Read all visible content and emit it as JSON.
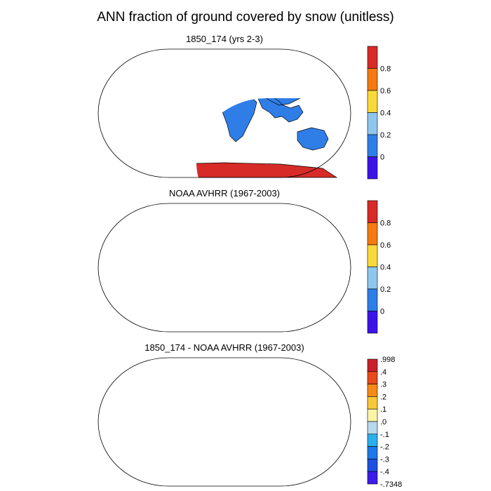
{
  "title": "ANN fraction of ground covered by snow (unitless)",
  "colors": {
    "ocean": "#ffffff",
    "coast": "#000000",
    "blue": "#2f7ee8",
    "lightblue": "#8fc6ec",
    "yellow": "#f7d93a",
    "orange": "#f57a12",
    "red": "#d62b27",
    "purple": "#3d14e8"
  },
  "panels": [
    {
      "title": "1850_174 (yrs 2-3)",
      "colorbar": {
        "labels": [
          "0.8",
          "0.6",
          "0.4",
          "0.2",
          "0"
        ],
        "colors": [
          "#d62b27",
          "#f57a12",
          "#f7d93a",
          "#8fc6ec",
          "#2f7ee8",
          "#3d14e8"
        ]
      }
    },
    {
      "title": "NOAA AVHRR (1967-2003)",
      "colorbar": {
        "labels": [
          "0.8",
          "0.6",
          "0.4",
          "0.2",
          "0"
        ],
        "colors": [
          "#d62b27",
          "#f57a12",
          "#f7d93a",
          "#8fc6ec",
          "#2f7ee8",
          "#3d14e8"
        ]
      }
    },
    {
      "title": "1850_174 - NOAA AVHRR (1967-2003)",
      "colorbar": {
        "labels": [
          ".998",
          ".4",
          ".3",
          ".2",
          ".1",
          ".0",
          "-.1",
          "-.2",
          "-.3",
          "-.4",
          "-.7348"
        ],
        "colors": [
          "#c8202a",
          "#e84a1c",
          "#f58a18",
          "#f7c83a",
          "#fbf3a8",
          "#b8d8ee",
          "#2bb0ec",
          "#1e78e8",
          "#1e50e0",
          "#3c1ce8"
        ]
      }
    }
  ]
}
